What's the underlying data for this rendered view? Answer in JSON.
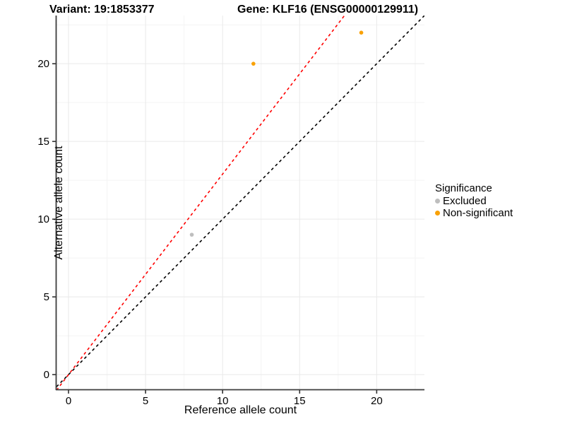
{
  "titles": {
    "variant": "Variant: 19:1853377",
    "gene": "Gene: KLF16 (ENSG00000129911)"
  },
  "axes": {
    "x_label": "Reference allele count",
    "y_label": "Alternative allele count"
  },
  "legend": {
    "title": "Significance",
    "items": [
      {
        "label": "Excluded",
        "color": "#BEBEBE"
      },
      {
        "label": "Non-significant",
        "color": "#F9A106"
      }
    ]
  },
  "chart_data": {
    "type": "scatter",
    "title_left": "Variant: 19:1853377",
    "title_right": "Gene: KLF16 (ENSG00000129911)",
    "xlabel": "Reference allele count",
    "ylabel": "Alternative allele count",
    "xlim": [
      -0.78,
      23.1
    ],
    "ylim": [
      -0.95,
      23.1
    ],
    "x_ticks": [
      0,
      5,
      10,
      15,
      20
    ],
    "y_ticks": [
      0,
      5,
      10,
      15,
      20
    ],
    "x_minor": [
      2.5,
      7.5,
      12.5,
      17.5,
      22.5
    ],
    "y_minor": [
      2.5,
      7.5,
      12.5,
      17.5,
      22.5
    ],
    "grid": true,
    "legend_position": "right",
    "series": [
      {
        "name": "Excluded",
        "color": "#BEBEBE",
        "points": [
          [
            8,
            9
          ]
        ]
      },
      {
        "name": "Non-significant",
        "color": "#F9A106",
        "points": [
          [
            12,
            20
          ],
          [
            19,
            22
          ]
        ]
      }
    ],
    "lines": [
      {
        "name": "identity-line",
        "slope": 1,
        "intercept": 0,
        "color": "#000000",
        "style": "dashed"
      },
      {
        "name": "expected-ratio-line",
        "slope": 1.29,
        "intercept": 0,
        "color": "#FF0000",
        "style": "dashed"
      }
    ],
    "style": {
      "grid_major_color": "#E9E9E9",
      "grid_minor_color": "#F4F4F4",
      "axis_line_color": "#3c3c3c",
      "tick_color": "#333333",
      "point_radius": 2.8
    }
  }
}
